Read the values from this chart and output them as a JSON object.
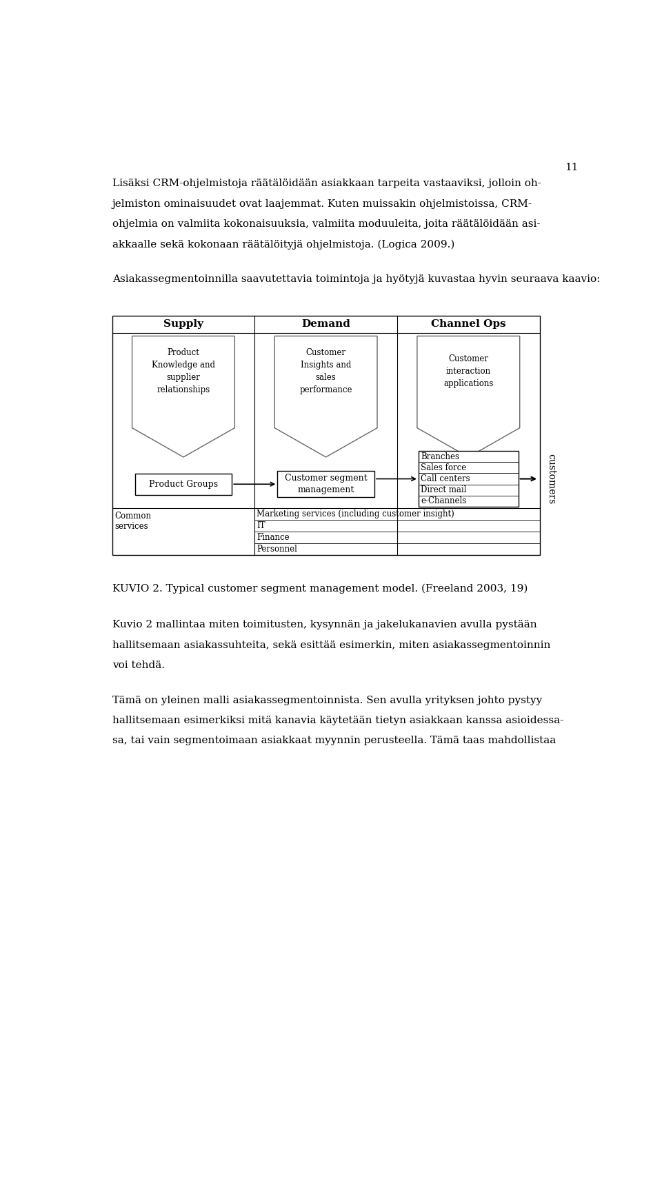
{
  "page_number": "11",
  "para1_lines": [
    "Lisäksi CRM-ohjelmistoja räätälöidään asiakkaan tarpeita vastaaviksi, jolloin oh-",
    "jelmiston ominaisuudet ovat laajemmat. Kuten muissakin ohjelmistoissa, CRM-",
    "ohjelmia on valmiita kokonaisuuksia, valmiita moduuleita, joita räätälöidään asi-",
    "akkaalle sekä kokonaan räätälöityjä ohjelmistoja. (Logica 2009.)"
  ],
  "para2_lines": [
    "Asiakassegmentoinnilla saavutettavia toimintoja ja hyötyjä kuvastaa hyvin seuraava kaavio:"
  ],
  "caption": "KUVIO 2. Typical customer segment management model. (Freeland 2003, 19)",
  "para3_lines": [
    "Kuvio 2 mallintaa miten toimitusten, kysynnän ja jakelukanavien avulla pystään",
    "hallitsemaan asiakassuhteita, sekä esittää esimerkin, miten asiakassegmentoinnin",
    "voi tehdä."
  ],
  "para4_lines": [
    "Tämä on yleinen malli asiakassegmentoinnista. Sen avulla yrityksen johto pystyy",
    "hallitsemaan esimerkiksi mitä kanavia käytetään tietyn asiakkaan kanssa asioidessa-",
    "sa, tai vain segmentoimaan asiakkaat myynnin perusteella. Tämä taas mahdollistaa"
  ],
  "col_headers": [
    "Supply",
    "Demand",
    "Channel Ops"
  ],
  "arrow_texts": [
    "Product\nKnowledge and\nsupplier\nrelationships",
    "Customer\nInsights and\nsales\nperformance",
    "Customer\ninteraction\napplications"
  ],
  "mid_boxes": [
    "Product Groups",
    "Customer segment\nmanagement"
  ],
  "channel_items": [
    "Branches",
    "Sales force",
    "Call centers",
    "Direct mail",
    "e-Channels"
  ],
  "common_services_left": "Common\nservices",
  "common_services_items": [
    "Marketing services (including customer insight)",
    "IT",
    "Finance",
    "Personnel"
  ],
  "customers_label": "customers",
  "bg_color": "#ffffff",
  "text_color": "#000000"
}
